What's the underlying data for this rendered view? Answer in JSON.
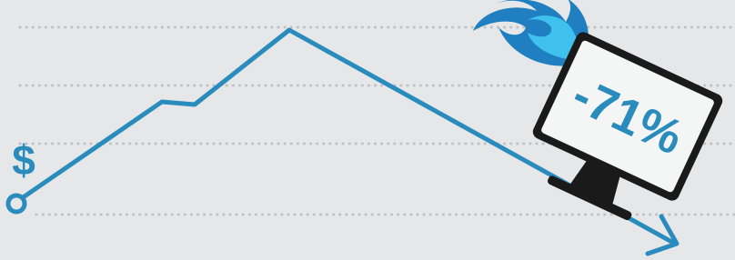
{
  "currency_symbol": "$",
  "monitor": {
    "label": "-71%"
  }
}
